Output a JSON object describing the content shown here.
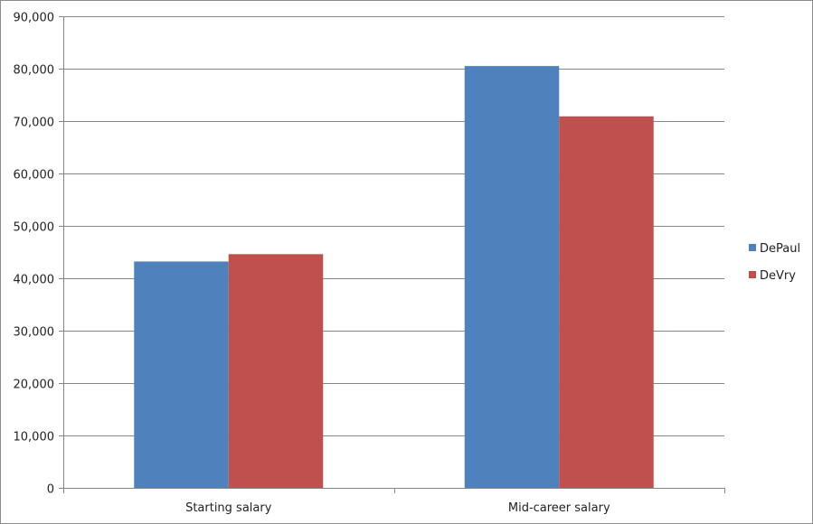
{
  "chart_data": {
    "type": "bar",
    "title": "",
    "xlabel": "",
    "ylabel": "",
    "categories": [
      "Starting salary",
      "Mid-career salary"
    ],
    "series": [
      {
        "name": "DePaul",
        "color": "#4f81bd",
        "values": [
          43200,
          80500
        ]
      },
      {
        "name": "DeVry",
        "color": "#c0504d",
        "values": [
          44600,
          70900
        ]
      }
    ],
    "ylim": [
      0,
      90000
    ],
    "yticks": [
      {
        "value": 0,
        "label": "0"
      },
      {
        "value": 10000,
        "label": "10,000"
      },
      {
        "value": 20000,
        "label": "20,000"
      },
      {
        "value": 30000,
        "label": "30,000"
      },
      {
        "value": 40000,
        "label": "40,000"
      },
      {
        "value": 50000,
        "label": "50,000"
      },
      {
        "value": 60000,
        "label": "60,000"
      },
      {
        "value": 70000,
        "label": "70,000"
      },
      {
        "value": 80000,
        "label": "80,000"
      },
      {
        "value": 90000,
        "label": "90,000"
      }
    ],
    "grid": true,
    "legend_position": "right",
    "gridline_color": "#868686",
    "axis_color": "#868686"
  }
}
